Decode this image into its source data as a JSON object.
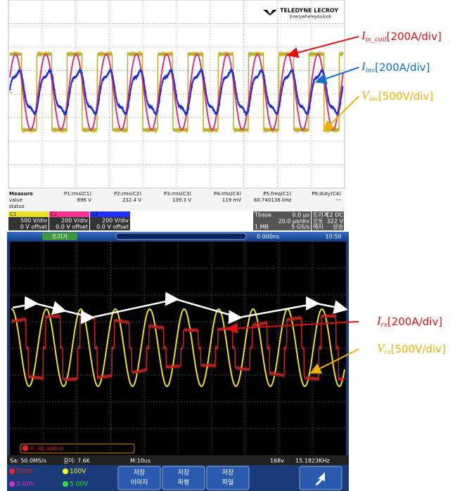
{
  "top_scope": {
    "brand": "TELEDYNE LECROY",
    "tagline": "Everywhereyoulook",
    "measure": {
      "label": "Measure",
      "headers": [
        "P1:rms(C1)",
        "P2:rms(C2)",
        "P3:rms(C3)",
        "P4:rms(C4)",
        "P5:freq(C1)",
        "P6:duty(C4)"
      ],
      "row_label": "value",
      "values": [
        "696 V",
        "232.4 V",
        "139.3 V",
        "119 mV",
        "60.740138 kHz",
        "---"
      ],
      "status_label": "status"
    },
    "channels": [
      {
        "name": "C1",
        "scale": "500 V/div",
        "offset": "0 V offset"
      },
      {
        "name": "C2",
        "scale": "200 V/div",
        "offset": "0.0 V offset"
      },
      {
        "name": "C3",
        "scale": "200 V/div",
        "offset": "0.0 V offset"
      }
    ],
    "timebase": {
      "label": "Tbase",
      "delay": "0.0 µs",
      "scale": "20.0 µs/div",
      "memory": "1 MB",
      "rate": "5 GS/s"
    },
    "trigger": {
      "label": "트리거",
      "source": "C2 DC",
      "mode": "오토",
      "level": "322 V",
      "type": "에지",
      "slope": "상승"
    }
  },
  "bottom_scope": {
    "trigger": "트리거",
    "time_offset": "0.000ns",
    "clock": "10:50",
    "frequency": "F: 30.36KHz",
    "sample_rate": "Sa: 50.0MS/s",
    "length": "길이: 7.6K",
    "horizontal": "M:10us",
    "trigger_level": "168v",
    "trigger_freq": "15.1823KHz",
    "channels": [
      "500V",
      "100V",
      "5.00V",
      "5.00V"
    ],
    "buttons": [
      [
        "저장",
        "이미지"
      ],
      [
        "저장",
        "파형"
      ],
      [
        "저장",
        "파일"
      ]
    ]
  },
  "annotations": [
    {
      "symbol": "I",
      "subscript": "tx_coil",
      "scale": "[200A/div]"
    },
    {
      "symbol": "I",
      "subscript": "inv",
      "scale": "[200A/div]"
    },
    {
      "symbol": "V",
      "subscript": "inv",
      "scale": "[500V/div]"
    },
    {
      "symbol": "I",
      "subscript": "rx",
      "scale": "[200A/div]"
    },
    {
      "symbol": "V",
      "subscript": "rx",
      "scale": "[500V/div]"
    }
  ]
}
